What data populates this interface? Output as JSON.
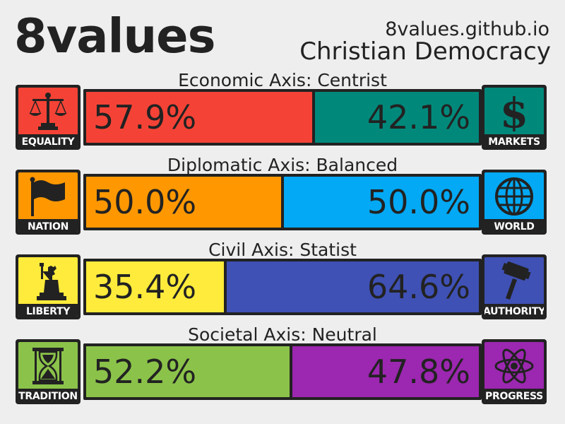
{
  "header": {
    "brand": "8values",
    "site": "8values.github.io",
    "ideology": "Christian Democracy"
  },
  "axes": [
    {
      "label": "Economic Axis: Centrist",
      "left": {
        "name": "EQUALITY",
        "icon": "scales-icon",
        "percent_text": "57.9%",
        "value": 57.9,
        "color": "#f44336"
      },
      "right": {
        "name": "MARKETS",
        "icon": "dollar-icon",
        "percent_text": "42.1%",
        "value": 42.1,
        "color": "#00897b"
      }
    },
    {
      "label": "Diplomatic Axis: Balanced",
      "left": {
        "name": "NATION",
        "icon": "flag-icon",
        "percent_text": "50.0%",
        "value": 50.0,
        "color": "#ff9800"
      },
      "right": {
        "name": "WORLD",
        "icon": "globe-icon",
        "percent_text": "50.0%",
        "value": 50.0,
        "color": "#03a9f4"
      }
    },
    {
      "label": "Civil Axis: Statist",
      "left": {
        "name": "LIBERTY",
        "icon": "statue-of-liberty-icon",
        "percent_text": "35.4%",
        "value": 35.4,
        "color": "#ffeb3b"
      },
      "right": {
        "name": "AUTHORITY",
        "icon": "gavel-icon",
        "percent_text": "64.6%",
        "value": 64.6,
        "color": "#3f51b5"
      }
    },
    {
      "label": "Societal Axis: Neutral",
      "left": {
        "name": "TRADITION",
        "icon": "hourglass-icon",
        "percent_text": "52.2%",
        "value": 52.2,
        "color": "#8bc34a"
      },
      "right": {
        "name": "PROGRESS",
        "icon": "atom-icon",
        "percent_text": "47.8%",
        "value": 47.8,
        "color": "#9c27b0"
      }
    }
  ]
}
